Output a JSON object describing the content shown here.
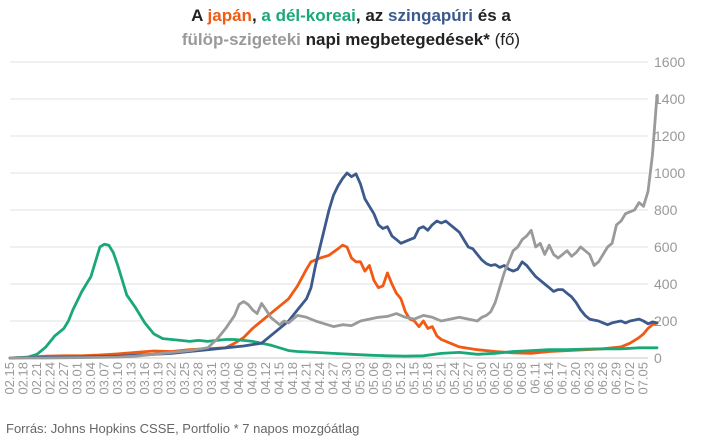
{
  "title": {
    "line1": [
      {
        "text": "A ",
        "color": "#222222"
      },
      {
        "text": "japán",
        "color": "#f05a14"
      },
      {
        "text": ", ",
        "color": "#222222"
      },
      {
        "text": "a dél-koreai",
        "color": "#1aa879"
      },
      {
        "text": ", az ",
        "color": "#222222"
      },
      {
        "text": "szingapúri",
        "color": "#3c5a8c"
      },
      {
        "text": " és a",
        "color": "#222222"
      }
    ],
    "line2": [
      {
        "text": "fülöp-szigeteki",
        "color": "#9a9a9a"
      },
      {
        "text": " napi megbetegedések*",
        "color": "#222222"
      },
      {
        "text": " (fő)",
        "color": "#222222",
        "normal": true
      }
    ]
  },
  "footer": "Forrás: Johns Hopkins CSSE, Portfolio   * 7 napos mozgóátlag",
  "chart_data": {
    "type": "line",
    "x_tick_labels": [
      "02.15",
      "02.18",
      "02.21",
      "02.24",
      "02.27",
      "03.01",
      "03.04",
      "03.07",
      "03.10",
      "03.13",
      "03.16",
      "03.19",
      "03.22",
      "03.25",
      "03.28",
      "03.31",
      "04.03",
      "04.06",
      "04.09",
      "04.12",
      "04.15",
      "04.18",
      "04.21",
      "04.24",
      "04.27",
      "04.30",
      "05.03",
      "05.06",
      "05.09",
      "05.12",
      "05.15",
      "05.18",
      "05.21",
      "05.24",
      "05.27",
      "05.30",
      "06.02",
      "06.05",
      "06.08",
      "06.11",
      "06.14",
      "06.17",
      "06.20",
      "06.23",
      "06.26",
      "06.29",
      "07.02",
      "07.05"
    ],
    "x_range": [
      0,
      142
    ],
    "y_ticks": [
      0,
      200,
      400,
      600,
      800,
      1000,
      1200,
      1400,
      1600
    ],
    "ylim": [
      0,
      1600
    ],
    "grid": true,
    "y_axis_side": "right",
    "series": [
      {
        "name": "japán",
        "color": "#f05a14",
        "points": [
          [
            0,
            0
          ],
          [
            4,
            5
          ],
          [
            8,
            10
          ],
          [
            12,
            12
          ],
          [
            16,
            12
          ],
          [
            20,
            16
          ],
          [
            24,
            22
          ],
          [
            28,
            30
          ],
          [
            32,
            38
          ],
          [
            36,
            35
          ],
          [
            40,
            45
          ],
          [
            44,
            50
          ],
          [
            48,
            55
          ],
          [
            50,
            80
          ],
          [
            52,
            110
          ],
          [
            54,
            160
          ],
          [
            56,
            200
          ],
          [
            58,
            240
          ],
          [
            60,
            280
          ],
          [
            62,
            320
          ],
          [
            64,
            390
          ],
          [
            66,
            480
          ],
          [
            67,
            520
          ],
          [
            69,
            540
          ],
          [
            71,
            555
          ],
          [
            73,
            590
          ],
          [
            74,
            610
          ],
          [
            75,
            600
          ],
          [
            76,
            540
          ],
          [
            77,
            520
          ],
          [
            78,
            520
          ],
          [
            79,
            470
          ],
          [
            80,
            500
          ],
          [
            81,
            420
          ],
          [
            82,
            380
          ],
          [
            83,
            390
          ],
          [
            84,
            460
          ],
          [
            85,
            400
          ],
          [
            86,
            350
          ],
          [
            87,
            320
          ],
          [
            88,
            250
          ],
          [
            89,
            210
          ],
          [
            90,
            200
          ],
          [
            91,
            170
          ],
          [
            92,
            200
          ],
          [
            93,
            160
          ],
          [
            94,
            170
          ],
          [
            95,
            120
          ],
          [
            96,
            100
          ],
          [
            98,
            80
          ],
          [
            100,
            60
          ],
          [
            104,
            45
          ],
          [
            108,
            35
          ],
          [
            112,
            28
          ],
          [
            116,
            25
          ],
          [
            120,
            35
          ],
          [
            124,
            40
          ],
          [
            128,
            45
          ],
          [
            132,
            50
          ],
          [
            136,
            60
          ],
          [
            138,
            80
          ],
          [
            139,
            95
          ],
          [
            140,
            110
          ],
          [
            141,
            130
          ],
          [
            142,
            160
          ],
          [
            143,
            180
          ],
          [
            144,
            190
          ]
        ]
      },
      {
        "name": "dél-koreai",
        "color": "#1aa879",
        "points": [
          [
            0,
            0
          ],
          [
            4,
            5
          ],
          [
            6,
            20
          ],
          [
            8,
            60
          ],
          [
            10,
            120
          ],
          [
            12,
            160
          ],
          [
            13,
            200
          ],
          [
            14,
            260
          ],
          [
            16,
            360
          ],
          [
            18,
            440
          ],
          [
            19,
            520
          ],
          [
            20,
            600
          ],
          [
            21,
            615
          ],
          [
            22,
            610
          ],
          [
            23,
            570
          ],
          [
            24,
            500
          ],
          [
            25,
            420
          ],
          [
            26,
            340
          ],
          [
            28,
            270
          ],
          [
            30,
            190
          ],
          [
            32,
            130
          ],
          [
            34,
            105
          ],
          [
            36,
            100
          ],
          [
            38,
            95
          ],
          [
            40,
            90
          ],
          [
            42,
            95
          ],
          [
            44,
            90
          ],
          [
            46,
            95
          ],
          [
            48,
            100
          ],
          [
            50,
            100
          ],
          [
            52,
            95
          ],
          [
            54,
            90
          ],
          [
            56,
            80
          ],
          [
            58,
            70
          ],
          [
            60,
            55
          ],
          [
            62,
            40
          ],
          [
            64,
            35
          ],
          [
            68,
            30
          ],
          [
            72,
            25
          ],
          [
            76,
            20
          ],
          [
            80,
            15
          ],
          [
            84,
            12
          ],
          [
            88,
            10
          ],
          [
            92,
            12
          ],
          [
            96,
            25
          ],
          [
            100,
            30
          ],
          [
            104,
            20
          ],
          [
            108,
            25
          ],
          [
            112,
            35
          ],
          [
            116,
            40
          ],
          [
            120,
            45
          ],
          [
            124,
            45
          ],
          [
            128,
            48
          ],
          [
            132,
            50
          ],
          [
            136,
            50
          ],
          [
            140,
            55
          ],
          [
            144,
            55
          ]
        ]
      },
      {
        "name": "szingapúri",
        "color": "#3c5a8c",
        "points": [
          [
            0,
            0
          ],
          [
            4,
            2
          ],
          [
            8,
            4
          ],
          [
            12,
            5
          ],
          [
            16,
            6
          ],
          [
            20,
            8
          ],
          [
            24,
            10
          ],
          [
            28,
            15
          ],
          [
            32,
            20
          ],
          [
            36,
            25
          ],
          [
            40,
            35
          ],
          [
            44,
            45
          ],
          [
            48,
            55
          ],
          [
            52,
            65
          ],
          [
            56,
            80
          ],
          [
            58,
            120
          ],
          [
            60,
            160
          ],
          [
            62,
            200
          ],
          [
            64,
            260
          ],
          [
            66,
            320
          ],
          [
            67,
            380
          ],
          [
            68,
            500
          ],
          [
            69,
            600
          ],
          [
            70,
            700
          ],
          [
            71,
            800
          ],
          [
            72,
            880
          ],
          [
            73,
            930
          ],
          [
            74,
            970
          ],
          [
            75,
            1000
          ],
          [
            76,
            980
          ],
          [
            77,
            995
          ],
          [
            78,
            940
          ],
          [
            79,
            860
          ],
          [
            80,
            820
          ],
          [
            81,
            780
          ],
          [
            82,
            720
          ],
          [
            83,
            700
          ],
          [
            84,
            710
          ],
          [
            85,
            660
          ],
          [
            86,
            640
          ],
          [
            87,
            620
          ],
          [
            88,
            630
          ],
          [
            89,
            640
          ],
          [
            90,
            650
          ],
          [
            91,
            700
          ],
          [
            92,
            710
          ],
          [
            93,
            690
          ],
          [
            94,
            720
          ],
          [
            95,
            740
          ],
          [
            96,
            730
          ],
          [
            97,
            740
          ],
          [
            98,
            720
          ],
          [
            99,
            700
          ],
          [
            100,
            680
          ],
          [
            101,
            640
          ],
          [
            102,
            600
          ],
          [
            103,
            590
          ],
          [
            104,
            560
          ],
          [
            105,
            530
          ],
          [
            106,
            510
          ],
          [
            107,
            500
          ],
          [
            108,
            505
          ],
          [
            109,
            490
          ],
          [
            110,
            500
          ],
          [
            111,
            480
          ],
          [
            112,
            470
          ],
          [
            113,
            480
          ],
          [
            114,
            520
          ],
          [
            115,
            500
          ],
          [
            116,
            470
          ],
          [
            117,
            440
          ],
          [
            118,
            420
          ],
          [
            119,
            400
          ],
          [
            120,
            380
          ],
          [
            121,
            360
          ],
          [
            122,
            370
          ],
          [
            123,
            370
          ],
          [
            124,
            350
          ],
          [
            125,
            330
          ],
          [
            126,
            300
          ],
          [
            127,
            260
          ],
          [
            128,
            230
          ],
          [
            129,
            210
          ],
          [
            130,
            205
          ],
          [
            131,
            200
          ],
          [
            132,
            190
          ],
          [
            133,
            180
          ],
          [
            134,
            190
          ],
          [
            135,
            195
          ],
          [
            136,
            200
          ],
          [
            137,
            190
          ],
          [
            138,
            200
          ],
          [
            139,
            205
          ],
          [
            140,
            210
          ],
          [
            141,
            200
          ],
          [
            142,
            185
          ],
          [
            143,
            195
          ],
          [
            144,
            190
          ]
        ]
      },
      {
        "name": "fülöp-szigeteki",
        "color": "#9a9a9a",
        "points": [
          [
            0,
            0
          ],
          [
            8,
            0
          ],
          [
            16,
            2
          ],
          [
            24,
            5
          ],
          [
            28,
            10
          ],
          [
            32,
            20
          ],
          [
            36,
            30
          ],
          [
            40,
            40
          ],
          [
            44,
            55
          ],
          [
            46,
            100
          ],
          [
            48,
            160
          ],
          [
            50,
            230
          ],
          [
            51,
            290
          ],
          [
            52,
            305
          ],
          [
            53,
            290
          ],
          [
            54,
            260
          ],
          [
            55,
            240
          ],
          [
            56,
            295
          ],
          [
            57,
            260
          ],
          [
            58,
            220
          ],
          [
            60,
            180
          ],
          [
            61,
            200
          ],
          [
            62,
            190
          ],
          [
            63,
            210
          ],
          [
            64,
            230
          ],
          [
            66,
            220
          ],
          [
            68,
            200
          ],
          [
            70,
            185
          ],
          [
            72,
            170
          ],
          [
            74,
            180
          ],
          [
            76,
            175
          ],
          [
            78,
            200
          ],
          [
            80,
            210
          ],
          [
            82,
            220
          ],
          [
            84,
            225
          ],
          [
            86,
            240
          ],
          [
            88,
            220
          ],
          [
            90,
            210
          ],
          [
            92,
            230
          ],
          [
            94,
            220
          ],
          [
            96,
            200
          ],
          [
            98,
            210
          ],
          [
            100,
            220
          ],
          [
            102,
            210
          ],
          [
            104,
            200
          ],
          [
            105,
            220
          ],
          [
            106,
            230
          ],
          [
            107,
            250
          ],
          [
            108,
            300
          ],
          [
            109,
            380
          ],
          [
            110,
            460
          ],
          [
            111,
            520
          ],
          [
            112,
            580
          ],
          [
            113,
            600
          ],
          [
            114,
            640
          ],
          [
            115,
            660
          ],
          [
            116,
            690
          ],
          [
            117,
            600
          ],
          [
            118,
            620
          ],
          [
            119,
            560
          ],
          [
            120,
            610
          ],
          [
            121,
            560
          ],
          [
            122,
            540
          ],
          [
            123,
            560
          ],
          [
            124,
            580
          ],
          [
            125,
            550
          ],
          [
            126,
            570
          ],
          [
            127,
            600
          ],
          [
            128,
            580
          ],
          [
            129,
            560
          ],
          [
            130,
            500
          ],
          [
            131,
            520
          ],
          [
            132,
            560
          ],
          [
            133,
            600
          ],
          [
            134,
            620
          ],
          [
            135,
            720
          ],
          [
            136,
            740
          ],
          [
            137,
            780
          ],
          [
            138,
            790
          ],
          [
            139,
            800
          ],
          [
            140,
            840
          ],
          [
            141,
            820
          ],
          [
            142,
            900
          ],
          [
            143,
            1100
          ],
          [
            144,
            1420
          ]
        ]
      }
    ]
  }
}
